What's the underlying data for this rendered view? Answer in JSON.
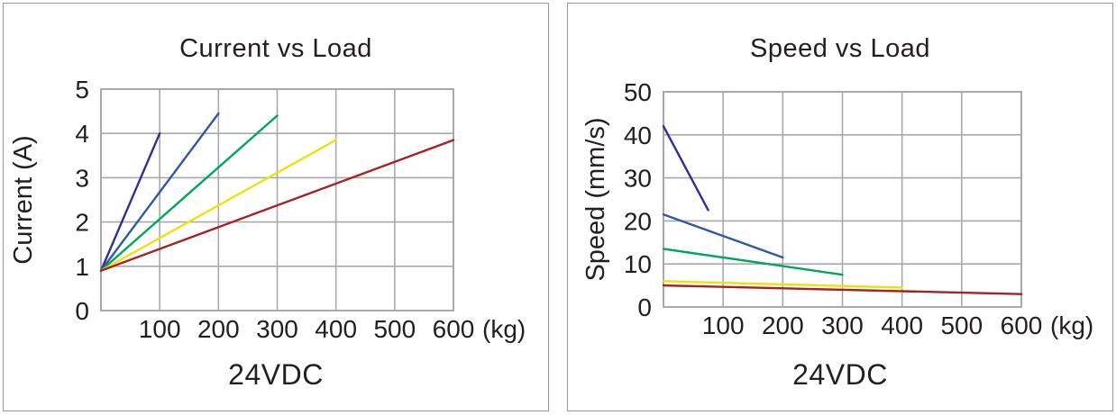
{
  "colors": {
    "text": "#231f20",
    "grid": "#a7a9ac",
    "panel_border": "#98989a",
    "panel_background": "#ffffff"
  },
  "panels": [
    {
      "title": "Current vs Load",
      "caption": "24VDC"
    },
    {
      "title": "Speed vs Load",
      "caption": "24VDC"
    }
  ],
  "chart_data": [
    {
      "type": "line",
      "title": "Current vs Load",
      "xlabel": "24VDC",
      "ylabel": "Current (A)",
      "x_unit": "(kg)",
      "xlim": [
        0,
        600
      ],
      "ylim": [
        0,
        5
      ],
      "x_ticks": [
        100,
        200,
        300,
        400,
        500,
        600
      ],
      "y_ticks": [
        0,
        1,
        2,
        3,
        4,
        5
      ],
      "grid": true,
      "legend": false,
      "series": [
        {
          "name": "navy-line",
          "color": "#2e3192",
          "points": [
            [
              0,
              0.9
            ],
            [
              100,
              4.0
            ]
          ]
        },
        {
          "name": "blue-line",
          "color": "#2d59a7",
          "points": [
            [
              0,
              0.9
            ],
            [
              200,
              4.45
            ]
          ]
        },
        {
          "name": "green-line",
          "color": "#00a55e",
          "points": [
            [
              0,
              0.9
            ],
            [
              300,
              4.4
            ]
          ]
        },
        {
          "name": "yellow-line",
          "color": "#f0e10c",
          "points": [
            [
              0,
              0.9
            ],
            [
              400,
              3.85
            ]
          ]
        },
        {
          "name": "dark-red-line",
          "color": "#aa1f23",
          "points": [
            [
              0,
              0.9
            ],
            [
              600,
              3.85
            ]
          ]
        }
      ]
    },
    {
      "type": "line",
      "title": "Speed vs Load",
      "xlabel": "24VDC",
      "ylabel": "Speed (mm/s)",
      "x_unit": "(kg)",
      "xlim": [
        0,
        600
      ],
      "ylim": [
        0,
        50
      ],
      "x_ticks": [
        100,
        200,
        300,
        400,
        500,
        600
      ],
      "y_ticks": [
        0,
        10,
        20,
        30,
        40,
        50
      ],
      "grid": true,
      "legend": false,
      "series": [
        {
          "name": "navy-line",
          "color": "#2e3192",
          "points": [
            [
              0,
              42
            ],
            [
              75,
              22.5
            ]
          ]
        },
        {
          "name": "blue-line",
          "color": "#2d59a7",
          "points": [
            [
              0,
              21.5
            ],
            [
              200,
              11.5
            ]
          ]
        },
        {
          "name": "green-line",
          "color": "#00a55e",
          "points": [
            [
              0,
              13.5
            ],
            [
              300,
              7.5
            ]
          ]
        },
        {
          "name": "yellow-line",
          "color": "#f0e10c",
          "points": [
            [
              0,
              6
            ],
            [
              400,
              4.5
            ]
          ]
        },
        {
          "name": "dark-red-line",
          "color": "#aa1f23",
          "points": [
            [
              0,
              5
            ],
            [
              600,
              3
            ]
          ]
        }
      ]
    }
  ]
}
